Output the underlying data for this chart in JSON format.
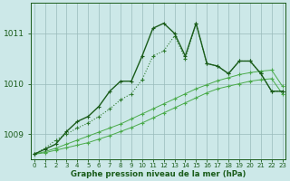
{
  "xlabel": "Graphe pression niveau de la mer (hPa)",
  "background_color": "#cce8e8",
  "plot_bg_color": "#cce8e8",
  "grid_color": "#99bbbb",
  "dark_green": "#1a5c1a",
  "mid_green": "#2d7a2d",
  "light_green": "#4aaa4a",
  "hours": [
    0,
    1,
    2,
    3,
    4,
    5,
    6,
    7,
    8,
    9,
    10,
    11,
    12,
    13,
    14,
    15,
    16,
    17,
    18,
    19,
    20,
    21,
    22,
    23
  ],
  "s_spiky": [
    1008.6,
    1008.7,
    1008.8,
    1009.05,
    1009.25,
    1009.35,
    1009.55,
    1009.85,
    1010.05,
    1010.05,
    1010.55,
    1011.1,
    1011.2,
    1011.0,
    1010.55,
    1011.2,
    1010.4,
    1010.35,
    1010.2,
    1010.45,
    1010.45,
    1010.2,
    1009.85,
    1009.85
  ],
  "s_smooth": [
    1008.6,
    1008.72,
    1008.88,
    1009.0,
    1009.12,
    1009.22,
    1009.35,
    1009.5,
    1009.68,
    1009.8,
    1010.08,
    1010.55,
    1010.65,
    1010.95,
    1010.5,
    1011.2,
    1010.4,
    1010.35,
    1010.2,
    1010.45,
    1010.45,
    1010.2,
    1009.85,
    1009.85
  ],
  "s_diag1": [
    1008.6,
    1008.63,
    1008.68,
    1008.73,
    1008.78,
    1008.83,
    1008.9,
    1008.97,
    1009.05,
    1009.13,
    1009.22,
    1009.32,
    1009.42,
    1009.52,
    1009.62,
    1009.72,
    1009.82,
    1009.9,
    1009.95,
    1010.0,
    1010.05,
    1010.08,
    1010.1,
    1009.8
  ],
  "s_diag2": [
    1008.6,
    1008.65,
    1008.72,
    1008.8,
    1008.88,
    1008.96,
    1009.04,
    1009.12,
    1009.2,
    1009.3,
    1009.4,
    1009.5,
    1009.6,
    1009.7,
    1009.8,
    1009.9,
    1009.98,
    1010.06,
    1010.12,
    1010.18,
    1010.22,
    1010.25,
    1010.27,
    1009.95
  ],
  "ylim": [
    1008.5,
    1011.6
  ],
  "yticks": [
    1009,
    1010,
    1011
  ],
  "xticks": [
    0,
    1,
    2,
    3,
    4,
    5,
    6,
    7,
    8,
    9,
    10,
    11,
    12,
    13,
    14,
    15,
    16,
    17,
    18,
    19,
    20,
    21,
    22,
    23
  ]
}
